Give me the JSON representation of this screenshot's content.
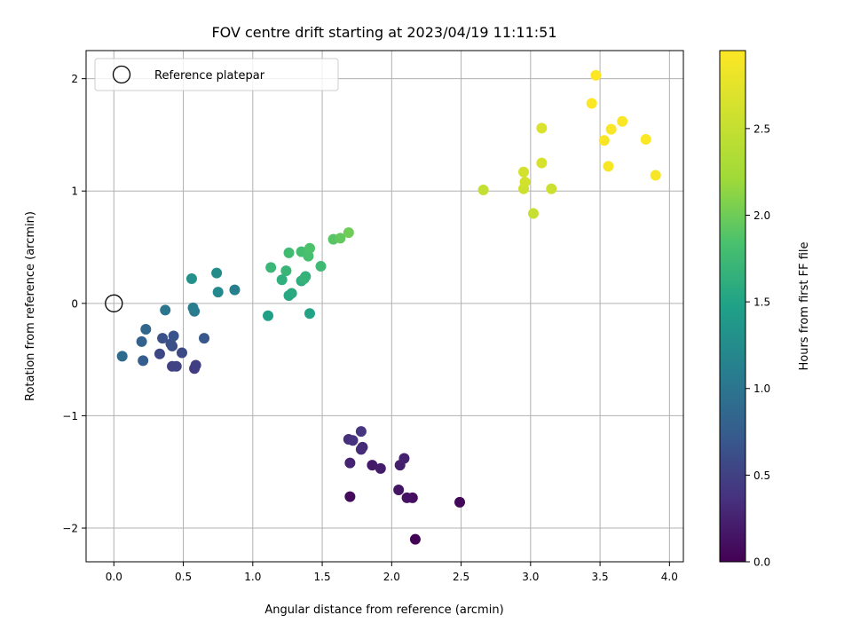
{
  "chart_data": {
    "type": "scatter",
    "title": "FOV centre drift starting at 2023/04/19 11:11:51",
    "xlabel": "Angular distance from reference (arcmin)",
    "ylabel": "Rotation from reference (arcmin)",
    "xlim": [
      -0.2,
      4.1
    ],
    "ylim": [
      -2.3,
      2.25
    ],
    "xticks": [
      0.0,
      0.5,
      1.0,
      1.5,
      2.0,
      2.5,
      3.0,
      3.5,
      4.0
    ],
    "xtick_labels": [
      "0.0",
      "0.5",
      "1.0",
      "1.5",
      "2.0",
      "2.5",
      "3.0",
      "3.5",
      "4.0"
    ],
    "yticks": [
      -2,
      -1,
      0,
      1,
      2
    ],
    "ytick_labels": [
      "−2",
      "−1",
      "0",
      "1",
      "2"
    ],
    "grid": true,
    "legend": {
      "placement": "top-left",
      "entries": [
        "Reference platepar"
      ]
    },
    "reference_point": {
      "x": 0.0,
      "y": 0.0
    },
    "colorbar": {
      "label": "Hours from first FF file",
      "colormap": "viridis",
      "range": [
        0.0,
        2.95
      ],
      "ticks": [
        0.0,
        0.5,
        1.0,
        1.5,
        2.0,
        2.5
      ],
      "tick_labels": [
        "0.0",
        "0.5",
        "1.0",
        "1.5",
        "2.0",
        "2.5"
      ]
    },
    "points": [
      {
        "x": 2.17,
        "y": -2.1,
        "c": 0.02
      },
      {
        "x": 2.49,
        "y": -1.77,
        "c": 0.05
      },
      {
        "x": 1.7,
        "y": -1.72,
        "c": 0.07
      },
      {
        "x": 2.15,
        "y": -1.73,
        "c": 0.1
      },
      {
        "x": 2.11,
        "y": -1.73,
        "c": 0.12
      },
      {
        "x": 2.05,
        "y": -1.66,
        "c": 0.15
      },
      {
        "x": 1.86,
        "y": -1.44,
        "c": 0.18
      },
      {
        "x": 1.92,
        "y": -1.47,
        "c": 0.2
      },
      {
        "x": 2.06,
        "y": -1.44,
        "c": 0.22
      },
      {
        "x": 2.09,
        "y": -1.38,
        "c": 0.25
      },
      {
        "x": 1.7,
        "y": -1.42,
        "c": 0.27
      },
      {
        "x": 1.79,
        "y": -1.28,
        "c": 0.3
      },
      {
        "x": 1.78,
        "y": -1.3,
        "c": 0.32
      },
      {
        "x": 1.69,
        "y": -1.21,
        "c": 0.35
      },
      {
        "x": 1.72,
        "y": -1.22,
        "c": 0.37
      },
      {
        "x": 1.78,
        "y": -1.14,
        "c": 0.4
      },
      {
        "x": 0.58,
        "y": -0.58,
        "c": 0.45
      },
      {
        "x": 0.59,
        "y": -0.55,
        "c": 0.48
      },
      {
        "x": 0.42,
        "y": -0.56,
        "c": 0.5
      },
      {
        "x": 0.45,
        "y": -0.56,
        "c": 0.52
      },
      {
        "x": 0.33,
        "y": -0.45,
        "c": 0.55
      },
      {
        "x": 0.49,
        "y": -0.44,
        "c": 0.57
      },
      {
        "x": 0.42,
        "y": -0.38,
        "c": 0.6
      },
      {
        "x": 0.41,
        "y": -0.36,
        "c": 0.62
      },
      {
        "x": 0.35,
        "y": -0.31,
        "c": 0.65
      },
      {
        "x": 0.43,
        "y": -0.29,
        "c": 0.67
      },
      {
        "x": 0.65,
        "y": -0.31,
        "c": 0.7
      },
      {
        "x": 0.21,
        "y": -0.51,
        "c": 0.75
      },
      {
        "x": 0.2,
        "y": -0.34,
        "c": 0.8
      },
      {
        "x": 0.23,
        "y": -0.23,
        "c": 0.85
      },
      {
        "x": 0.06,
        "y": -0.47,
        "c": 0.9
      },
      {
        "x": 0.37,
        "y": -0.06,
        "c": 1.0
      },
      {
        "x": 0.58,
        "y": -0.07,
        "c": 1.05
      },
      {
        "x": 0.57,
        "y": -0.04,
        "c": 1.08
      },
      {
        "x": 0.87,
        "y": 0.12,
        "c": 1.1
      },
      {
        "x": 0.75,
        "y": 0.1,
        "c": 1.2
      },
      {
        "x": 0.74,
        "y": 0.27,
        "c": 1.25
      },
      {
        "x": 0.56,
        "y": 0.22,
        "c": 1.3
      },
      {
        "x": 1.11,
        "y": -0.11,
        "c": 1.45
      },
      {
        "x": 1.41,
        "y": -0.09,
        "c": 1.5
      },
      {
        "x": 1.26,
        "y": 0.07,
        "c": 1.55
      },
      {
        "x": 1.28,
        "y": 0.09,
        "c": 1.57
      },
      {
        "x": 1.35,
        "y": 0.2,
        "c": 1.6
      },
      {
        "x": 1.21,
        "y": 0.21,
        "c": 1.62
      },
      {
        "x": 1.38,
        "y": 0.24,
        "c": 1.65
      },
      {
        "x": 1.37,
        "y": 0.22,
        "c": 1.67
      },
      {
        "x": 1.24,
        "y": 0.29,
        "c": 1.7
      },
      {
        "x": 1.13,
        "y": 0.32,
        "c": 1.72
      },
      {
        "x": 1.49,
        "y": 0.33,
        "c": 1.75
      },
      {
        "x": 1.26,
        "y": 0.45,
        "c": 1.77
      },
      {
        "x": 1.35,
        "y": 0.46,
        "c": 1.8
      },
      {
        "x": 1.4,
        "y": 0.42,
        "c": 1.82
      },
      {
        "x": 1.41,
        "y": 0.49,
        "c": 1.85
      },
      {
        "x": 1.58,
        "y": 0.57,
        "c": 1.9
      },
      {
        "x": 1.63,
        "y": 0.58,
        "c": 1.95
      },
      {
        "x": 1.69,
        "y": 0.63,
        "c": 2.0
      },
      {
        "x": 2.66,
        "y": 1.01,
        "c": 2.5
      },
      {
        "x": 3.02,
        "y": 0.8,
        "c": 2.52
      },
      {
        "x": 3.15,
        "y": 1.02,
        "c": 2.55
      },
      {
        "x": 2.95,
        "y": 1.02,
        "c": 2.57
      },
      {
        "x": 2.96,
        "y": 1.08,
        "c": 2.6
      },
      {
        "x": 2.95,
        "y": 1.17,
        "c": 2.62
      },
      {
        "x": 3.08,
        "y": 1.25,
        "c": 2.65
      },
      {
        "x": 3.08,
        "y": 1.56,
        "c": 2.67
      },
      {
        "x": 3.56,
        "y": 1.22,
        "c": 2.9
      },
      {
        "x": 3.9,
        "y": 1.14,
        "c": 2.9
      },
      {
        "x": 3.53,
        "y": 1.45,
        "c": 2.91
      },
      {
        "x": 3.58,
        "y": 1.55,
        "c": 2.92
      },
      {
        "x": 3.66,
        "y": 1.62,
        "c": 2.92
      },
      {
        "x": 3.83,
        "y": 1.46,
        "c": 2.93
      },
      {
        "x": 3.44,
        "y": 1.78,
        "c": 2.94
      },
      {
        "x": 3.47,
        "y": 2.03,
        "c": 2.95
      }
    ]
  }
}
